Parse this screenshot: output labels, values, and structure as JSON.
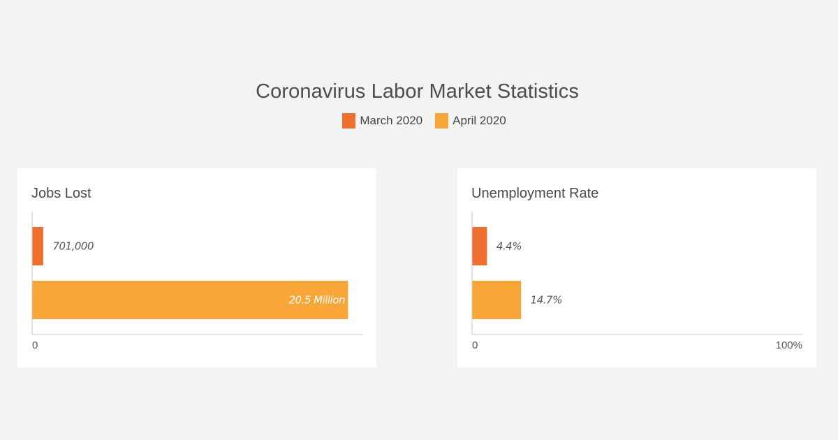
{
  "title": "Coronavirus Labor Market Statistics",
  "legend": [
    {
      "label": "March 2020",
      "color": "#ef6f2e"
    },
    {
      "label": "April 2020",
      "color": "#f9a638"
    }
  ],
  "chart_data": [
    {
      "type": "bar",
      "orientation": "horizontal",
      "title": "Jobs Lost",
      "categories": [
        "March 2020",
        "April 2020"
      ],
      "values": [
        701000,
        20500000
      ],
      "data_labels": [
        "701,000",
        "20.5 Million"
      ],
      "label_inside": [
        false,
        true
      ],
      "colors": [
        "#ef6f2e",
        "#f9a638"
      ],
      "xlim": [
        0,
        21500000
      ],
      "tick_labels": {
        "min": "0",
        "max": ""
      }
    },
    {
      "type": "bar",
      "orientation": "horizontal",
      "title": "Unemployment Rate",
      "categories": [
        "March 2020",
        "April 2020"
      ],
      "values": [
        4.4,
        14.7
      ],
      "data_labels": [
        "4.4%",
        "14.7%"
      ],
      "label_inside": [
        false,
        false
      ],
      "colors": [
        "#ef6f2e",
        "#f9a638"
      ],
      "xlim": [
        0,
        100
      ],
      "tick_labels": {
        "min": "0",
        "max": "100%"
      }
    }
  ]
}
